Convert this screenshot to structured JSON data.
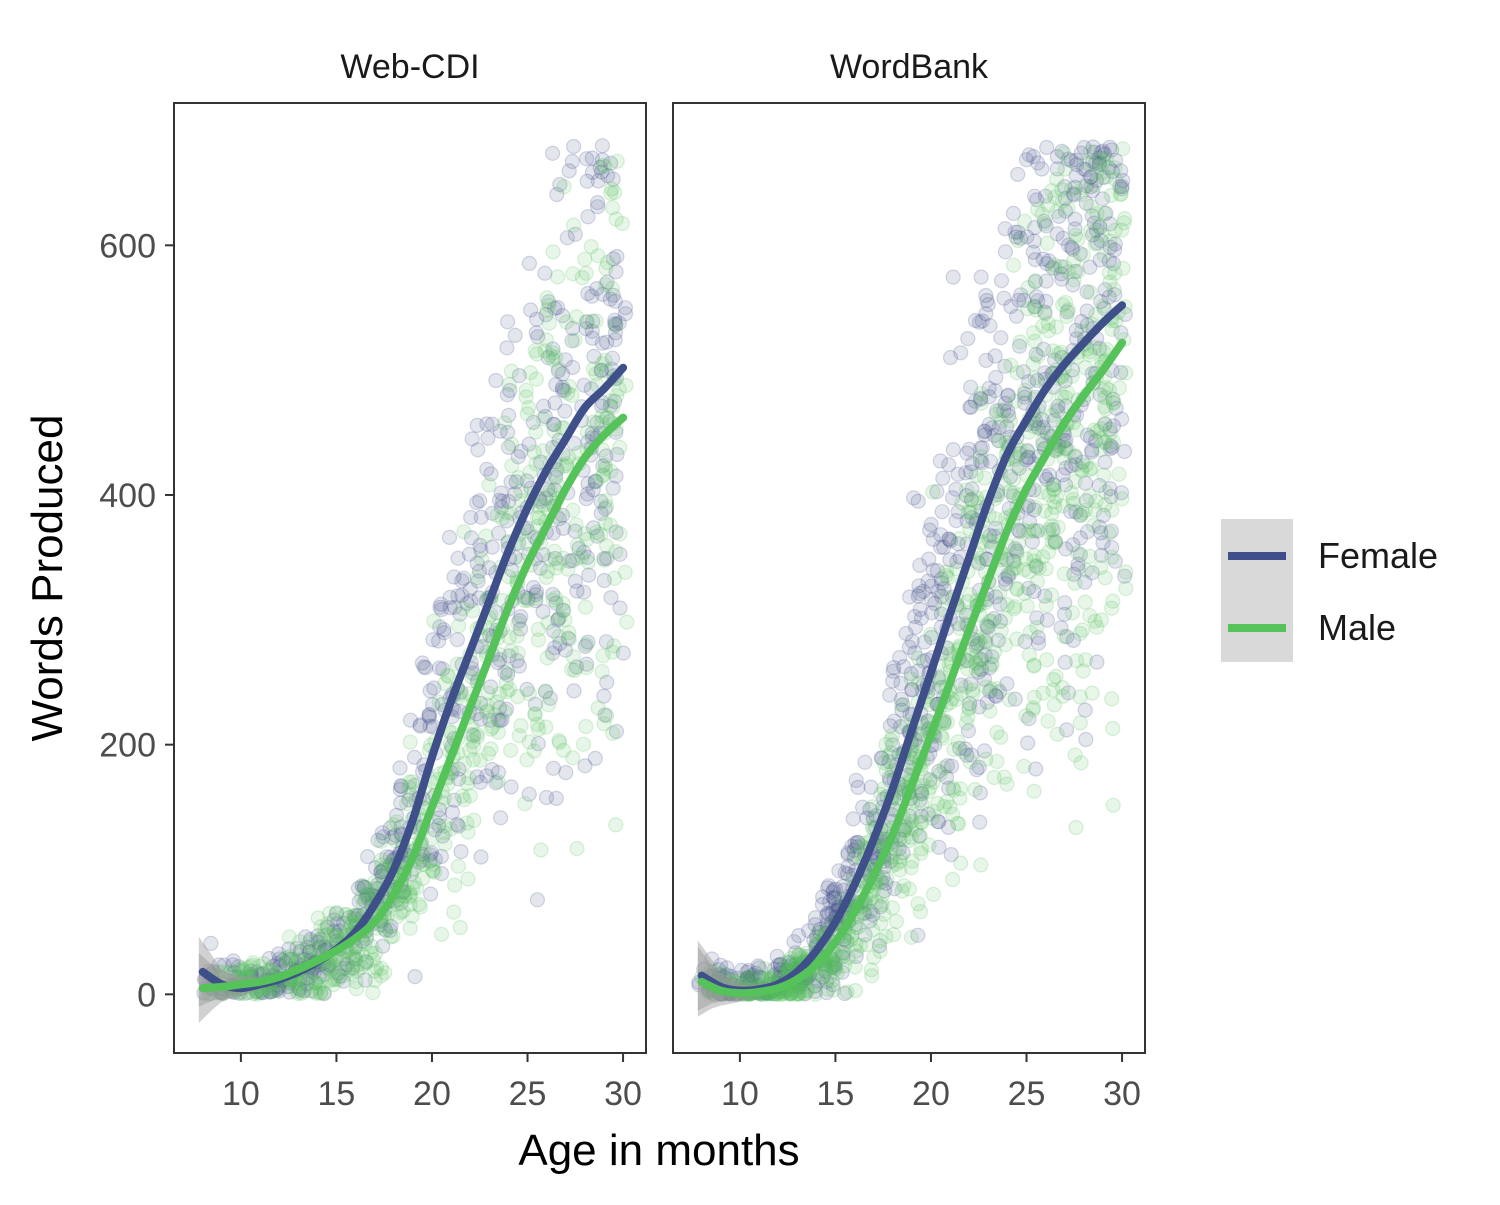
{
  "chart_data": {
    "type": "scatter",
    "xlabel": "Age in months",
    "ylabel": "Words Produced",
    "x_ticks": [
      10,
      15,
      20,
      25,
      30
    ],
    "y_ticks": [
      0,
      200,
      400,
      600
    ],
    "xlim": [
      6.5,
      31.2
    ],
    "ylim": [
      -47,
      714
    ],
    "grid": false,
    "legend": {
      "position": "right",
      "entries": [
        {
          "label": "Female",
          "color": "#3e4f8a"
        },
        {
          "label": "Male",
          "color": "#55c25a"
        }
      ]
    },
    "colors": {
      "Female": "#3e4f8a",
      "Male": "#55c25a",
      "ribbon": "#999999"
    },
    "panels": [
      {
        "title": "Web-CDI",
        "series": [
          {
            "name": "Female",
            "x": [
              8,
              9,
              10,
              11,
              12,
              13,
              14,
              15,
              16,
              17,
              18,
              19,
              20,
              21,
              22,
              23,
              24,
              25,
              26,
              27,
              28,
              29,
              30
            ],
            "y": [
              18,
              8,
              5,
              8,
              12,
              18,
              26,
              36,
              50,
              72,
              100,
              140,
              190,
              235,
              275,
              315,
              355,
              390,
              420,
              445,
              470,
              485,
              502
            ]
          },
          {
            "name": "Male",
            "x": [
              8,
              9,
              10,
              11,
              12,
              13,
              14,
              15,
              16,
              17,
              18,
              19,
              20,
              21,
              22,
              23,
              24,
              25,
              26,
              27,
              28,
              29,
              30
            ],
            "y": [
              5,
              6,
              8,
              10,
              14,
              20,
              27,
              35,
              45,
              58,
              80,
              110,
              150,
              190,
              230,
              270,
              310,
              345,
              375,
              405,
              430,
              448,
              462
            ]
          }
        ]
      },
      {
        "title": "WordBank",
        "series": [
          {
            "name": "Female",
            "x": [
              8,
              9,
              10,
              11,
              12,
              13,
              14,
              15,
              16,
              17,
              18,
              19,
              20,
              21,
              22,
              23,
              24,
              25,
              26,
              27,
              28,
              29,
              30
            ],
            "y": [
              15,
              6,
              3,
              4,
              8,
              18,
              35,
              58,
              88,
              124,
              165,
              212,
              258,
              305,
              350,
              395,
              433,
              460,
              485,
              505,
              522,
              538,
              552
            ]
          },
          {
            "name": "Male",
            "x": [
              8,
              9,
              10,
              11,
              12,
              13,
              14,
              15,
              16,
              17,
              18,
              19,
              20,
              21,
              22,
              23,
              24,
              25,
              26,
              27,
              28,
              29,
              30
            ],
            "y": [
              10,
              3,
              1,
              2,
              5,
              12,
              24,
              42,
              66,
              95,
              128,
              168,
              208,
              250,
              292,
              332,
              372,
              405,
              432,
              458,
              480,
              500,
              522
            ]
          }
        ]
      }
    ]
  }
}
